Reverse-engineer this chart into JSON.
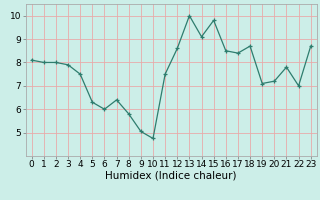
{
  "x": [
    0,
    1,
    2,
    3,
    4,
    5,
    6,
    7,
    8,
    9,
    10,
    11,
    12,
    13,
    14,
    15,
    16,
    17,
    18,
    19,
    20,
    21,
    22,
    23
  ],
  "y": [
    8.1,
    8.0,
    8.0,
    7.9,
    7.5,
    6.3,
    6.0,
    6.4,
    5.8,
    5.05,
    4.75,
    7.5,
    8.6,
    10.0,
    9.1,
    9.8,
    8.5,
    8.4,
    8.7,
    7.1,
    7.2,
    7.8,
    7.0,
    8.7
  ],
  "line_color": "#2e7d6e",
  "marker": "+",
  "marker_size": 3,
  "bg_color": "#cceee8",
  "grid_color": "#e8aaaa",
  "xlabel": "Humidex (Indice chaleur)",
  "xlim": [
    -0.5,
    23.5
  ],
  "ylim": [
    4.0,
    10.5
  ],
  "yticks": [
    5,
    6,
    7,
    8,
    9,
    10
  ],
  "xticks": [
    0,
    1,
    2,
    3,
    4,
    5,
    6,
    7,
    8,
    9,
    10,
    11,
    12,
    13,
    14,
    15,
    16,
    17,
    18,
    19,
    20,
    21,
    22,
    23
  ],
  "xtick_labels": [
    "0",
    "1",
    "2",
    "3",
    "4",
    "5",
    "6",
    "7",
    "8",
    "9",
    "10",
    "11",
    "12",
    "13",
    "14",
    "15",
    "16",
    "17",
    "18",
    "19",
    "20",
    "21",
    "22",
    "23"
  ],
  "font_size_axis": 6.5,
  "font_size_label": 7.5
}
